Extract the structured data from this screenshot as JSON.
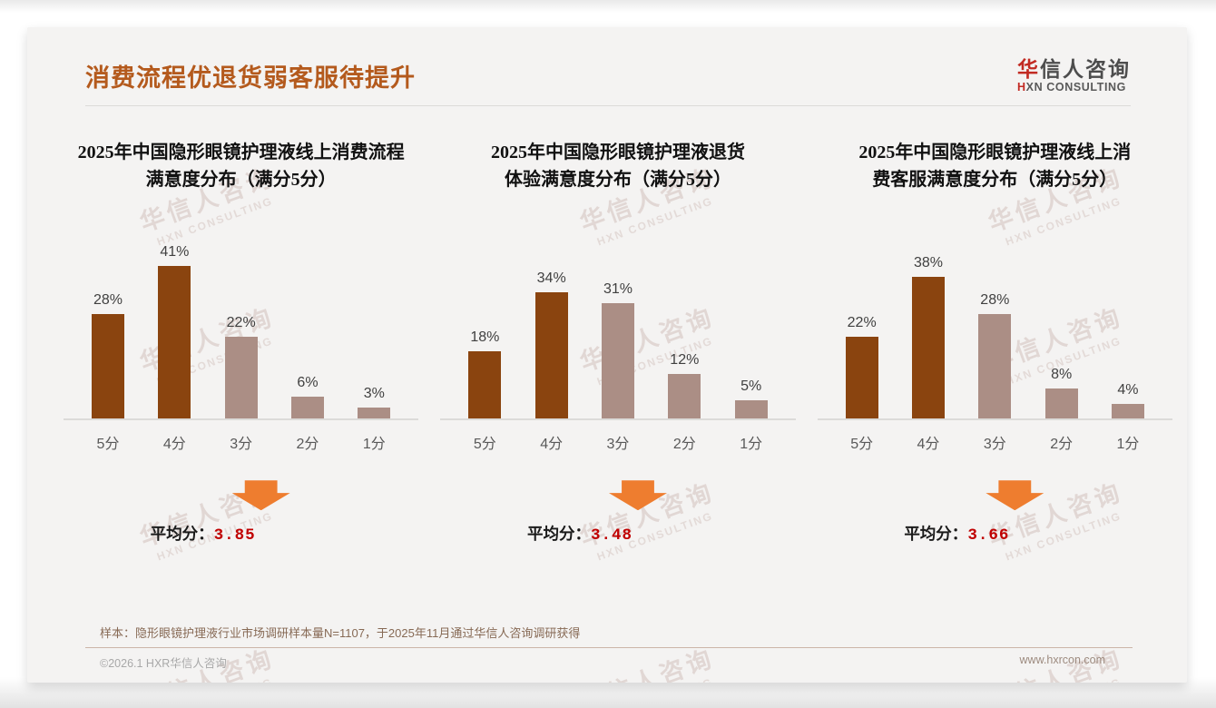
{
  "slide": {
    "header": {
      "title": "消费流程优退货弱客服待提升"
    },
    "logo": {
      "cn_first": "华",
      "cn_rest": "信人咨询",
      "en_first": "H",
      "en_rest": "XN CONSULTING"
    },
    "watermark": {
      "line1": "华信人咨询",
      "line2": "HXN CONSULTING"
    },
    "footnote": "样本：隐形眼镜护理液行业市场调研样本量N=1107，于2025年11月通过华信人咨询调研获得",
    "footer": {
      "left": "©2026.1 HXR华信人咨询",
      "right": "www.hxrcon.com"
    }
  },
  "colors": {
    "header_title": "#b45a1d",
    "bar_dark": "#8a440f",
    "bar_light": "#ab8e85",
    "arrow_orange": "#ee7d2f",
    "average_red": "#c00000",
    "logo_red": "#c22a22",
    "axis_label_gray": "#595959",
    "slide_background": "#f4f3f2"
  },
  "chart_data": [
    {
      "type": "bar",
      "title": "2025年中国隐形眼镜护理液线上消费流程满意度分布（满分5分）",
      "title_lines": [
        "2025年中国隐形眼镜护理液线上消费流程",
        "满意度分布（满分5分）"
      ],
      "categories": [
        "5分",
        "4分",
        "3分",
        "2分",
        "1分"
      ],
      "values": [
        28,
        41,
        22,
        6,
        3
      ],
      "data_labels": [
        "28%",
        "41%",
        "22%",
        "6%",
        "3%"
      ],
      "bar_roles": [
        "dark",
        "dark",
        "light",
        "light",
        "light"
      ],
      "ylim": [
        0,
        45
      ],
      "grid": false,
      "legend": null,
      "average_label": "平均分：",
      "average_value": "3.85"
    },
    {
      "type": "bar",
      "title": "2025年中国隐形眼镜护理液退货体验满意度分布（满分5分）",
      "title_lines": [
        "2025年中国隐形眼镜护理液退货",
        "体验满意度分布（满分5分）"
      ],
      "categories": [
        "5分",
        "4分",
        "3分",
        "2分",
        "1分"
      ],
      "values": [
        18,
        34,
        31,
        12,
        5
      ],
      "data_labels": [
        "18%",
        "34%",
        "31%",
        "12%",
        "5%"
      ],
      "bar_roles": [
        "dark",
        "dark",
        "light",
        "light",
        "light"
      ],
      "ylim": [
        0,
        45
      ],
      "grid": false,
      "legend": null,
      "average_label": "平均分：",
      "average_value": "3.48"
    },
    {
      "type": "bar",
      "title": "2025年中国隐形眼镜护理液线上消费客服满意度分布（满分5分）",
      "title_lines": [
        "2025年中国隐形眼镜护理液线上消",
        "费客服满意度分布（满分5分）"
      ],
      "categories": [
        "5分",
        "4分",
        "3分",
        "2分",
        "1分"
      ],
      "values": [
        22,
        38,
        28,
        8,
        4
      ],
      "data_labels": [
        "22%",
        "38%",
        "28%",
        "8%",
        "4%"
      ],
      "bar_roles": [
        "dark",
        "dark",
        "light",
        "light",
        "light"
      ],
      "ylim": [
        0,
        45
      ],
      "grid": false,
      "legend": null,
      "average_label": "平均分：",
      "average_value": "3.66"
    }
  ]
}
